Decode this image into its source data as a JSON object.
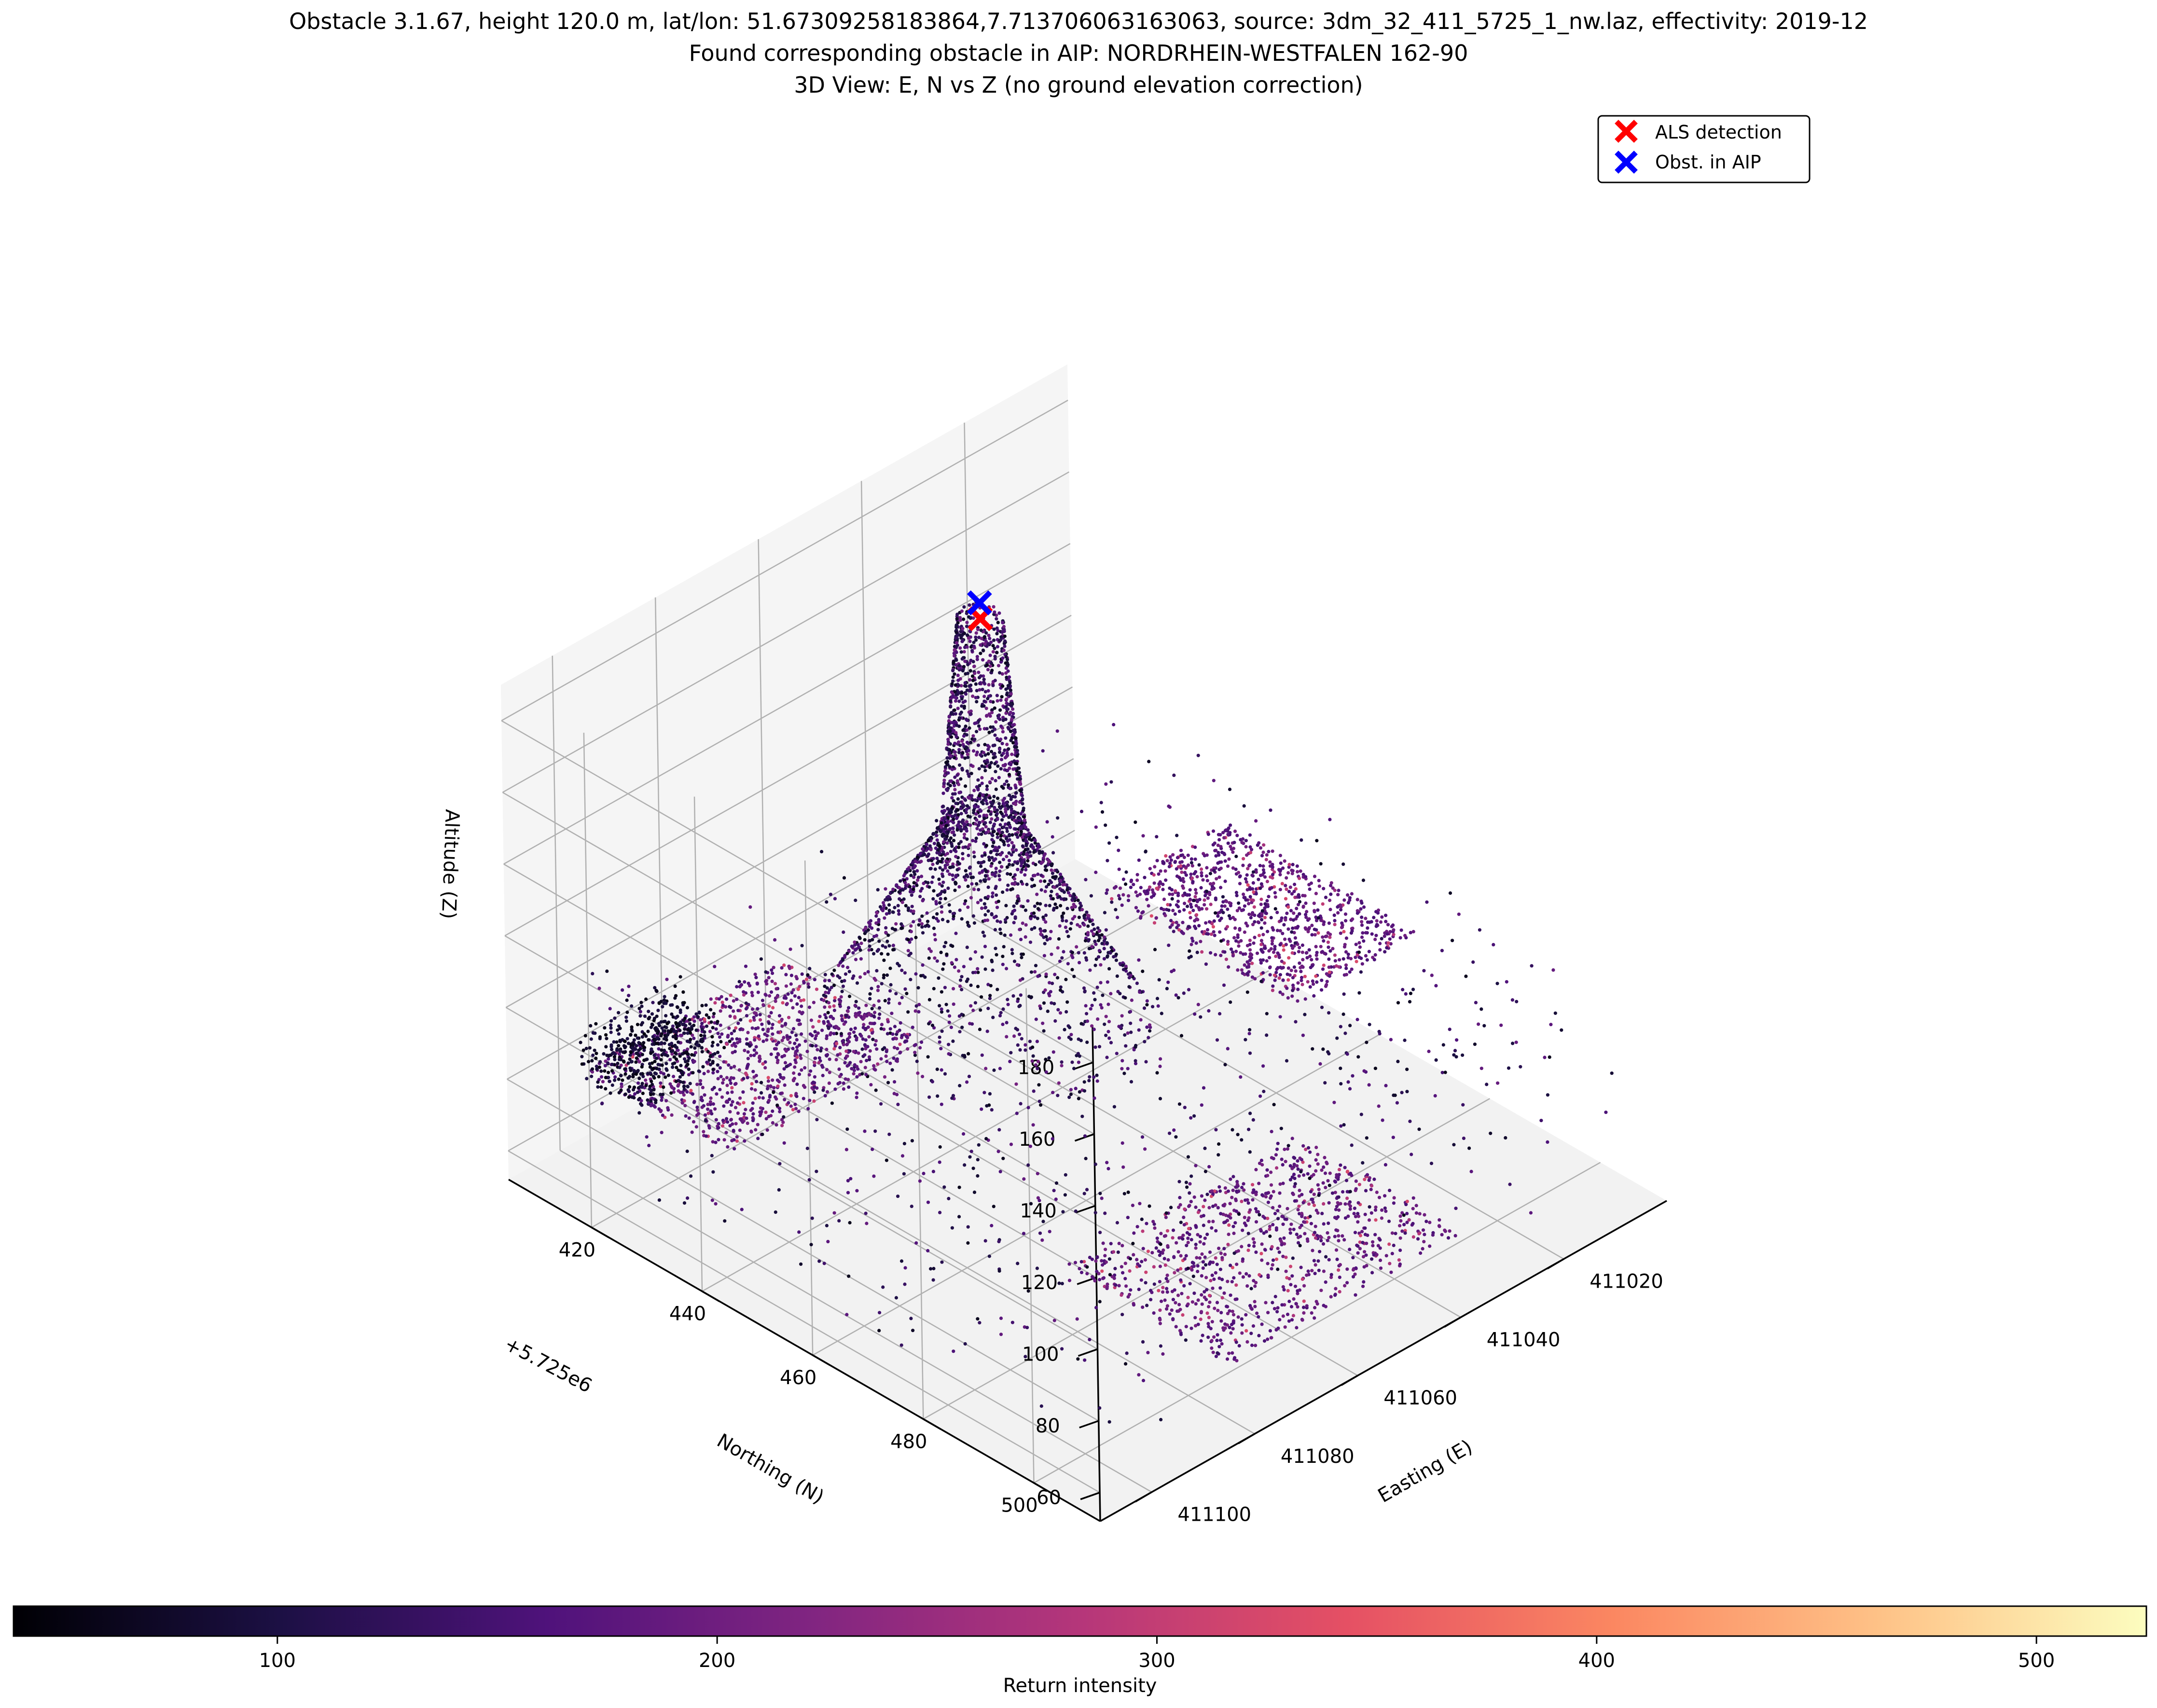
{
  "figure": {
    "title_lines": [
      "Obstacle 3.1.67, height 120.0 m, lat/lon: 51.67309258183864,7.713706063163063, source: 3dm_32_411_5725_1_nw.laz, effectivity: 2019-12",
      "Found corresponding obstacle in AIP: NORDRHEIN-WESTFALEN 162-90",
      "3D View: E, N vs Z (no ground elevation correction)"
    ]
  },
  "chart_data": {
    "type": "scatter",
    "projection": "3d",
    "xlabel": "Easting (E)",
    "ylabel": "Northing (N)",
    "zlabel": "Altitude (Z)",
    "y_offset_text": "+5.725e6",
    "x_ticks": [
      "411020",
      "411040",
      "411060",
      "411080",
      "411100"
    ],
    "y_ticks": [
      "420",
      "440",
      "460",
      "480",
      "500"
    ],
    "z_ticks": [
      "60",
      "80",
      "100",
      "120",
      "140",
      "160",
      "180"
    ],
    "xlim": [
      411000,
      411110
    ],
    "ylim": [
      405,
      512
    ],
    "zlim": [
      52,
      190
    ],
    "grid": true,
    "legend": {
      "placement": "top-right",
      "entries": [
        {
          "label": "ALS detection",
          "marker": "x",
          "color": "#ff0000"
        },
        {
          "label": "Obst. in AIP",
          "marker": "x",
          "color": "#0000ff"
        }
      ]
    },
    "markers": [
      {
        "name": "ALS detection",
        "color": "#ff0000",
        "E": 411046,
        "N": 5725432,
        "Z": 180.5
      },
      {
        "name": "Obst. in AIP",
        "color": "#0000ff",
        "E": 411044,
        "N": 5725430,
        "Z": 181.5
      }
    ],
    "point_cloud": {
      "description_colormap": "magma",
      "structures": [
        {
          "kind": "tower",
          "E": 411045,
          "N": 5725431,
          "z_base": 112,
          "z_top": 180,
          "r_top": 3,
          "r_base": 6
        },
        {
          "kind": "tower-base-cone",
          "E": 411045,
          "N": 5725431,
          "z_base": 68,
          "z_top": 125,
          "r_base": 22
        },
        {
          "kind": "roof",
          "E_range": [
            411008,
            411032
          ],
          "N_range": [
            5725440,
            5725475
          ],
          "Z": 100
        },
        {
          "kind": "roof",
          "E_range": [
            411035,
            411080
          ],
          "N_range": [
            5725478,
            5725508
          ],
          "Z": 68
        },
        {
          "kind": "roof",
          "E_range": [
            411060,
            411098
          ],
          "N_range": [
            5725408,
            5725434
          ],
          "Z": 75
        },
        {
          "kind": "trees",
          "E_range": [
            411082,
            411100
          ],
          "N_range": [
            5725408,
            5725420
          ],
          "Z": [
            74,
            88
          ]
        }
      ]
    },
    "colorbar": {
      "label": "Return intensity",
      "colormap": "magma",
      "range": [
        40,
        525
      ],
      "ticks": [
        "100",
        "200",
        "300",
        "400",
        "500"
      ]
    }
  }
}
